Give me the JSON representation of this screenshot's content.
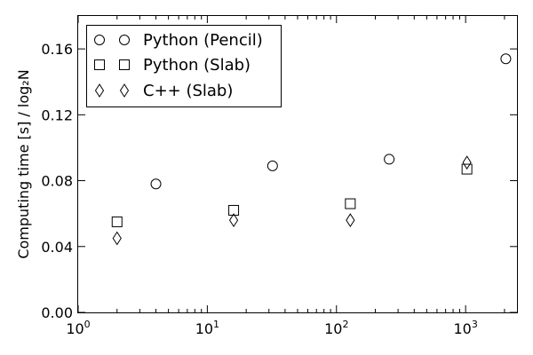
{
  "chart_data": {
    "type": "scatter",
    "xscale": "log",
    "xlim": [
      1,
      2500
    ],
    "ylim": [
      0,
      0.18
    ],
    "xlabel": "",
    "ylabel": "Computing time [s] / log₂N",
    "xticks": [
      {
        "value": 1,
        "base": "10",
        "exp": "0"
      },
      {
        "value": 10,
        "base": "10",
        "exp": "1"
      },
      {
        "value": 100,
        "base": "10",
        "exp": "2"
      },
      {
        "value": 1000,
        "base": "10",
        "exp": "3"
      }
    ],
    "yticks": [
      {
        "value": 0.0,
        "label": "0.00"
      },
      {
        "value": 0.04,
        "label": "0.04"
      },
      {
        "value": 0.08,
        "label": "0.08"
      },
      {
        "value": 0.12,
        "label": "0.12"
      },
      {
        "value": 0.16,
        "label": "0.16"
      }
    ],
    "legend_position": "top-left",
    "grid": false,
    "series": [
      {
        "name": "Python (Pencil)",
        "marker": "circle",
        "points": [
          {
            "x": 4,
            "y": 0.078
          },
          {
            "x": 32,
            "y": 0.089
          },
          {
            "x": 256,
            "y": 0.093
          },
          {
            "x": 2048,
            "y": 0.154
          }
        ]
      },
      {
        "name": "Python (Slab)",
        "marker": "square",
        "points": [
          {
            "x": 2,
            "y": 0.055
          },
          {
            "x": 16,
            "y": 0.062
          },
          {
            "x": 128,
            "y": 0.066
          },
          {
            "x": 1024,
            "y": 0.087
          }
        ]
      },
      {
        "name": "C++ (Slab)",
        "marker": "diamond",
        "points": [
          {
            "x": 2,
            "y": 0.045
          },
          {
            "x": 16,
            "y": 0.056
          },
          {
            "x": 128,
            "y": 0.056
          },
          {
            "x": 1024,
            "y": 0.091
          }
        ]
      }
    ]
  }
}
